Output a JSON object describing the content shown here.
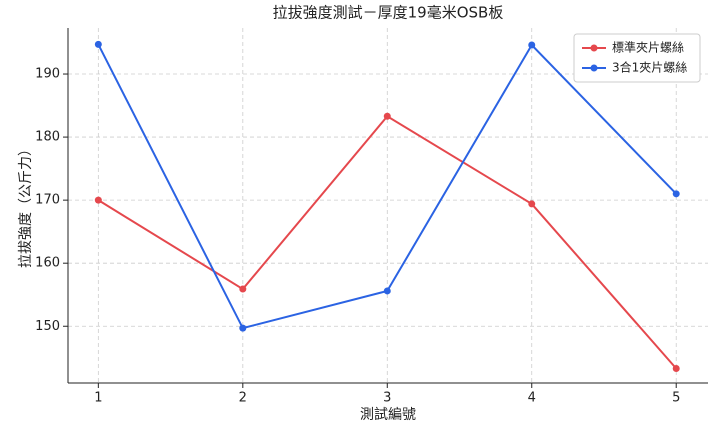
{
  "chart_data": {
    "type": "line",
    "title": "拉拔強度測試－厚度19毫米OSB板",
    "xlabel": "測試編號",
    "ylabel": "拉拔強度（公斤力）",
    "x": [
      1,
      2,
      3,
      4,
      5
    ],
    "series": [
      {
        "name": "標準夾片螺絲",
        "color": "#e5484d",
        "values": [
          170,
          155.9,
          183.3,
          169.4,
          143.3
        ]
      },
      {
        "name": "3合1夾片螺絲",
        "color": "#2b63e3",
        "values": [
          194.7,
          149.7,
          155.6,
          194.6,
          171
        ]
      }
    ],
    "xlim": [
      0.79,
      5.22
    ],
    "xticks": [
      1,
      2,
      3,
      4,
      5
    ],
    "ylim": [
      141,
      197.3
    ],
    "yticks": [
      150,
      160,
      170,
      180,
      190
    ],
    "grid": true,
    "legend": "upper right"
  }
}
